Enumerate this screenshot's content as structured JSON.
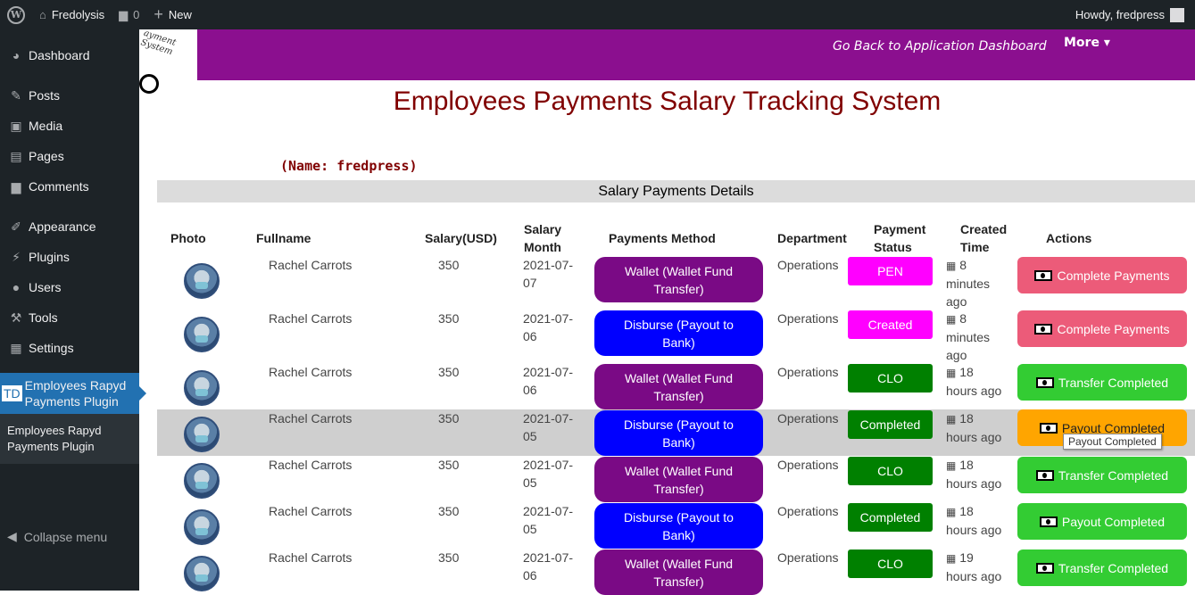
{
  "adminbar": {
    "site_name": "Fredolysis",
    "comments_count": "0",
    "new_label": "New",
    "howdy": "Howdy, fredpress"
  },
  "sidebar": {
    "items": [
      {
        "label": "Dashboard",
        "icon": "dashboard-icon"
      },
      {
        "label": "Posts",
        "icon": "pin-icon"
      },
      {
        "label": "Media",
        "icon": "media-icon"
      },
      {
        "label": "Pages",
        "icon": "pages-icon"
      },
      {
        "label": "Comments",
        "icon": "comment-icon"
      },
      {
        "label": "Appearance",
        "icon": "brush-icon"
      },
      {
        "label": "Plugins",
        "icon": "plugin-icon"
      },
      {
        "label": "Users",
        "icon": "user-icon"
      },
      {
        "label": "Tools",
        "icon": "wrench-icon"
      },
      {
        "label": "Settings",
        "icon": "settings-icon"
      }
    ],
    "active_badge": "TD",
    "active_label": "Employees Rapyd Payments Plugin",
    "submenu_label": "Employees Rapyd Payments Plugin",
    "collapse_label": "Collapse menu"
  },
  "header": {
    "logo_text": "ayment System",
    "back_link": "Go Back to Application Dashboard",
    "more_label": "More ▾"
  },
  "title": "Employees Payments Salary Tracking System",
  "user_name": "(Name: fredpress)",
  "section_title": "Salary Payments Details",
  "table": {
    "headers": {
      "photo": "Photo",
      "fullname": "Fullname",
      "salary": "Salary(USD)",
      "salary_month_1": "Salary",
      "salary_month_2": "Month",
      "method": "Payments Method",
      "department": "Department",
      "status_1": "Payment",
      "status_2": "Status",
      "created_1": "Created",
      "created_2": "Time",
      "actions": "Actions"
    },
    "rows": [
      {
        "name": "Rachel Carrots",
        "salary": "350",
        "month_a": "2021-07-",
        "month_b": "07",
        "method_a": "Wallet (Wallet Fund",
        "method_b": "Transfer)",
        "dept": "Operations",
        "status": "PEN",
        "created_a": "8",
        "created_b": "minutes",
        "created_c": "ago",
        "action": "Complete Payments"
      },
      {
        "name": "Rachel Carrots",
        "salary": "350",
        "month_a": "2021-07-",
        "month_b": "06",
        "method_a": "Disburse (Payout to",
        "method_b": "Bank)",
        "dept": "Operations",
        "status": "Created",
        "created_a": "8",
        "created_b": "minutes",
        "created_c": "ago",
        "action": "Complete Payments"
      },
      {
        "name": "Rachel Carrots",
        "salary": "350",
        "month_a": "2021-07-",
        "month_b": "06",
        "method_a": "Wallet (Wallet Fund",
        "method_b": "Transfer)",
        "dept": "Operations",
        "status": "CLO",
        "created_a": "18",
        "created_b": "hours ago",
        "created_c": "",
        "action": "Transfer Completed"
      },
      {
        "name": "Rachel Carrots",
        "salary": "350",
        "month_a": "2021-07-",
        "month_b": "05",
        "method_a": "Disburse (Payout to",
        "method_b": "Bank)",
        "dept": "Operations",
        "status": "Completed",
        "created_a": "18",
        "created_b": "hours ago",
        "created_c": "",
        "action": "Payout Completed"
      },
      {
        "name": "Rachel Carrots",
        "salary": "350",
        "month_a": "2021-07-",
        "month_b": "05",
        "method_a": "Wallet (Wallet Fund",
        "method_b": "Transfer)",
        "dept": "Operations",
        "status": "CLO",
        "created_a": "18",
        "created_b": "hours ago",
        "created_c": "",
        "action": "Transfer Completed"
      },
      {
        "name": "Rachel Carrots",
        "salary": "350",
        "month_a": "2021-07-",
        "month_b": "05",
        "method_a": "Disburse (Payout to",
        "method_b": "Bank)",
        "dept": "Operations",
        "status": "Completed",
        "created_a": "18",
        "created_b": "hours ago",
        "created_c": "",
        "action": "Payout Completed"
      },
      {
        "name": "Rachel Carrots",
        "salary": "350",
        "month_a": "2021-07-",
        "month_b": "06",
        "method_a": "Wallet (Wallet Fund",
        "method_b": "Transfer)",
        "dept": "Operations",
        "status": "CLO",
        "created_a": "19",
        "created_b": "hours ago",
        "created_c": "",
        "action": "Transfer Completed"
      }
    ]
  },
  "tooltip": "Payout Completed",
  "colors": {
    "purple_header": "#8b0f8f",
    "wallet_method": "#7a0a85",
    "disburse_method": "#0000ff",
    "status_pink": "#ff00ff",
    "status_green": "#008000",
    "action_red": "#ec5b79",
    "action_green": "#33cc33",
    "action_orange": "#ffa500"
  }
}
